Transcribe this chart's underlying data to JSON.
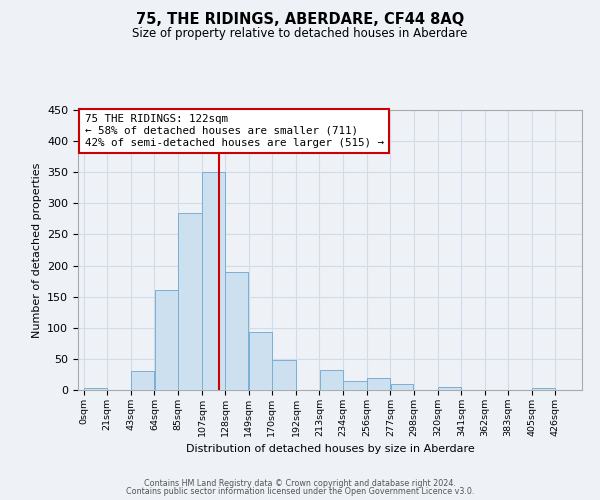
{
  "title": "75, THE RIDINGS, ABERDARE, CF44 8AQ",
  "subtitle": "Size of property relative to detached houses in Aberdare",
  "xlabel": "Distribution of detached houses by size in Aberdare",
  "ylabel": "Number of detached properties",
  "bar_color": "#cce0f0",
  "bar_edge_color": "#7aafd4",
  "bar_left_edges": [
    0,
    21,
    43,
    64,
    85,
    107,
    128,
    149,
    170,
    192,
    213,
    234,
    256,
    277,
    298,
    320,
    341,
    362,
    383,
    405
  ],
  "bar_widths": [
    21,
    22,
    21,
    21,
    22,
    21,
    21,
    21,
    22,
    21,
    21,
    22,
    21,
    21,
    22,
    21,
    21,
    21,
    22,
    21
  ],
  "bar_heights": [
    3,
    0,
    30,
    160,
    285,
    350,
    190,
    93,
    48,
    0,
    32,
    14,
    19,
    10,
    0,
    5,
    0,
    0,
    0,
    4
  ],
  "property_size": 122,
  "vline_color": "#cc0000",
  "ylim": [
    0,
    450
  ],
  "yticks": [
    0,
    50,
    100,
    150,
    200,
    250,
    300,
    350,
    400,
    450
  ],
  "xtick_labels": [
    "0sqm",
    "21sqm",
    "43sqm",
    "64sqm",
    "85sqm",
    "107sqm",
    "128sqm",
    "149sqm",
    "170sqm",
    "192sqm",
    "213sqm",
    "234sqm",
    "256sqm",
    "277sqm",
    "298sqm",
    "320sqm",
    "341sqm",
    "362sqm",
    "383sqm",
    "405sqm",
    "426sqm"
  ],
  "xtick_positions": [
    0,
    21,
    43,
    64,
    85,
    107,
    128,
    149,
    170,
    192,
    213,
    234,
    256,
    277,
    298,
    320,
    341,
    362,
    383,
    405,
    426
  ],
  "annotation_title": "75 THE RIDINGS: 122sqm",
  "annotation_line1": "← 58% of detached houses are smaller (711)",
  "annotation_line2": "42% of semi-detached houses are larger (515) →",
  "annotation_box_color": "#ffffff",
  "annotation_box_edge": "#cc0000",
  "grid_color": "#d0dce8",
  "background_color": "#eef2f7",
  "footer_line1": "Contains HM Land Registry data © Crown copyright and database right 2024.",
  "footer_line2": "Contains public sector information licensed under the Open Government Licence v3.0."
}
